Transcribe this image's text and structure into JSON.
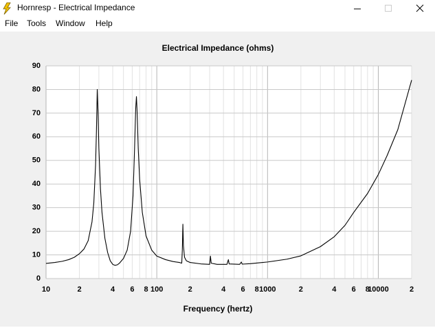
{
  "window": {
    "title": "Hornresp - Electrical Impedance",
    "menu": [
      "File",
      "Tools",
      "Window",
      "Help"
    ]
  },
  "chart_data": {
    "type": "line",
    "title": "Electrical Impedance (ohms)",
    "x_label": "Frequency (hertz)",
    "x_scale": "log",
    "grid": true,
    "xlim": [
      10,
      20000
    ],
    "ylim": [
      0,
      90
    ],
    "yticks": [
      0,
      10,
      20,
      30,
      40,
      50,
      60,
      70,
      80,
      90
    ],
    "xticks": [
      10,
      {
        "value": 20,
        "label": "2"
      },
      {
        "value": 40,
        "label": "4"
      },
      {
        "value": 60,
        "label": "6"
      },
      {
        "value": 80,
        "label": "8"
      },
      100,
      {
        "value": 200,
        "label": "2"
      },
      {
        "value": 400,
        "label": "4"
      },
      {
        "value": 600,
        "label": "6"
      },
      {
        "value": 800,
        "label": "8"
      },
      1000,
      {
        "value": 2000,
        "label": "2"
      },
      {
        "value": 4000,
        "label": "4"
      },
      {
        "value": 6000,
        "label": "6"
      },
      {
        "value": 8000,
        "label": "8"
      },
      10000,
      {
        "value": 20000,
        "label": "2"
      }
    ],
    "x_minor_grid": [
      30,
      50,
      70,
      90,
      300,
      500,
      700,
      900,
      3000,
      5000,
      7000,
      9000
    ],
    "series": [
      {
        "color": "#000000",
        "x": [
          10,
          12,
          14,
          16,
          18,
          20,
          22,
          24,
          26,
          27,
          28,
          28.5,
          29,
          29.5,
          30,
          31,
          32,
          34,
          36,
          38,
          40,
          42,
          44,
          46,
          50,
          54,
          58,
          61,
          63,
          64.5,
          65.5,
          66.5,
          68,
          70,
          74,
          80,
          90,
          100,
          120,
          140,
          160,
          168,
          170,
          172,
          174,
          178,
          185,
          200,
          250,
          300,
          305,
          310,
          350,
          430,
          443,
          450,
          560,
          580,
          590,
          700,
          1000,
          1500,
          2000,
          3000,
          4000,
          5000,
          6000,
          8000,
          10000,
          12000,
          15000,
          20000
        ],
        "values": [
          6.4,
          6.8,
          7.3,
          8.0,
          9.0,
          10.5,
          12.5,
          16,
          24,
          32,
          48,
          62,
          80,
          70,
          55,
          38,
          28,
          17,
          11,
          7.5,
          6,
          5.6,
          5.8,
          6.5,
          8.5,
          12,
          20,
          35,
          55,
          72,
          77,
          70,
          55,
          42,
          28,
          18,
          12,
          9.5,
          8,
          7.2,
          6.8,
          6.5,
          12,
          23,
          14,
          9,
          7.5,
          6.8,
          6.2,
          6,
          9.5,
          6.5,
          6,
          6,
          8,
          6.2,
          6,
          7,
          6.1,
          6.3,
          7,
          8.2,
          9.6,
          13.5,
          17.7,
          22.5,
          28,
          36,
          44,
          52,
          63,
          84
        ]
      }
    ]
  }
}
